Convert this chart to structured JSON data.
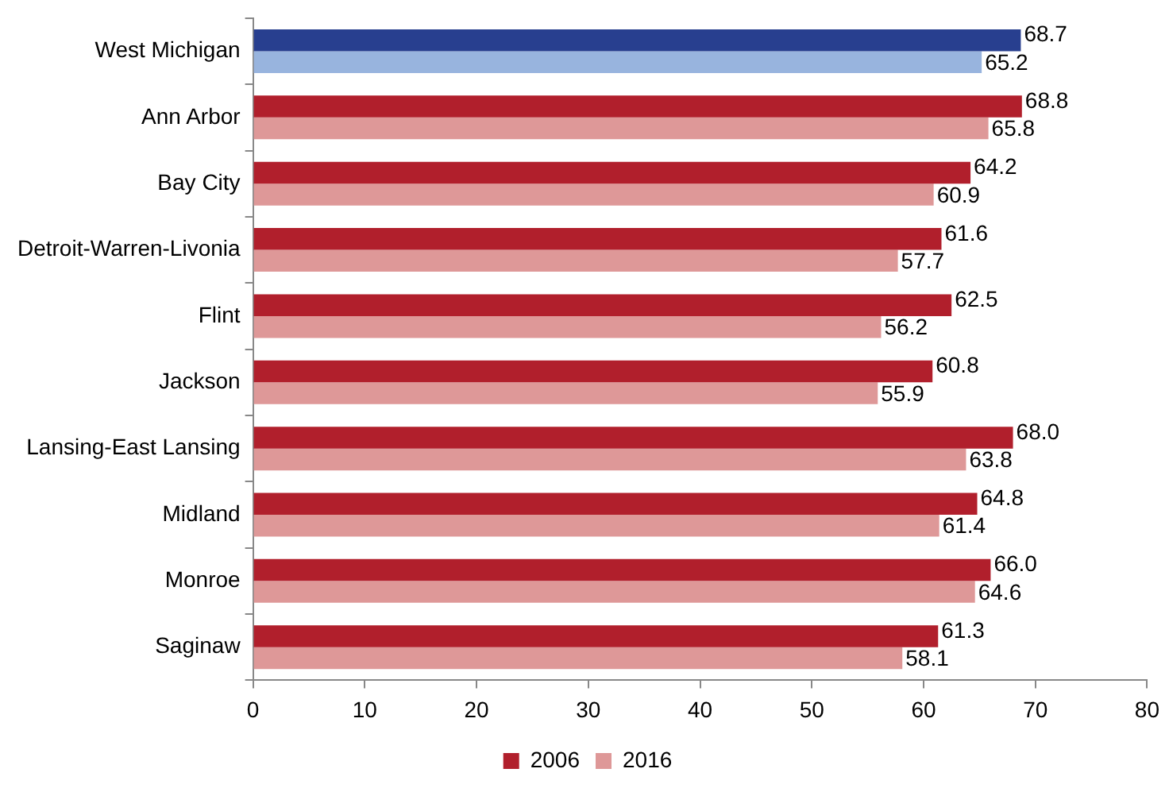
{
  "chart_data": {
    "type": "bar",
    "orientation": "horizontal",
    "categories": [
      "West Michigan",
      "Ann Arbor",
      "Bay City",
      "Detroit-Warren-Livonia",
      "Flint",
      "Jackson",
      "Lansing-East Lansing",
      "Midland",
      "Monroe",
      "Saginaw"
    ],
    "series": [
      {
        "name": "2006",
        "color": "#b11f2c",
        "colors": [
          "#283f8f",
          "#b11f2c",
          "#b11f2c",
          "#b11f2c",
          "#b11f2c",
          "#b11f2c",
          "#b11f2c",
          "#b11f2c",
          "#b11f2c",
          "#b11f2c"
        ],
        "values": [
          68.7,
          68.8,
          64.2,
          61.6,
          62.5,
          60.8,
          68.0,
          64.8,
          66.0,
          61.3
        ],
        "value_labels": [
          "68.7",
          "68.8",
          "64.2",
          "61.6",
          "62.5",
          "60.8",
          "68.0",
          "64.8",
          "66.0",
          "61.3"
        ]
      },
      {
        "name": "2016",
        "color": "#de9898",
        "colors": [
          "#98b4de",
          "#de9898",
          "#de9898",
          "#de9898",
          "#de9898",
          "#de9898",
          "#de9898",
          "#de9898",
          "#de9898",
          "#de9898"
        ],
        "values": [
          65.2,
          65.8,
          60.9,
          57.7,
          56.2,
          55.9,
          63.8,
          61.4,
          64.6,
          58.1
        ],
        "value_labels": [
          "65.2",
          "65.8",
          "60.9",
          "57.7",
          "56.2",
          "55.9",
          "63.8",
          "61.4",
          "64.6",
          "58.1"
        ]
      }
    ],
    "xlim": [
      0,
      80
    ],
    "xticks": [
      0,
      10,
      20,
      30,
      40,
      50,
      60,
      70,
      80
    ],
    "legend": "bottom"
  }
}
